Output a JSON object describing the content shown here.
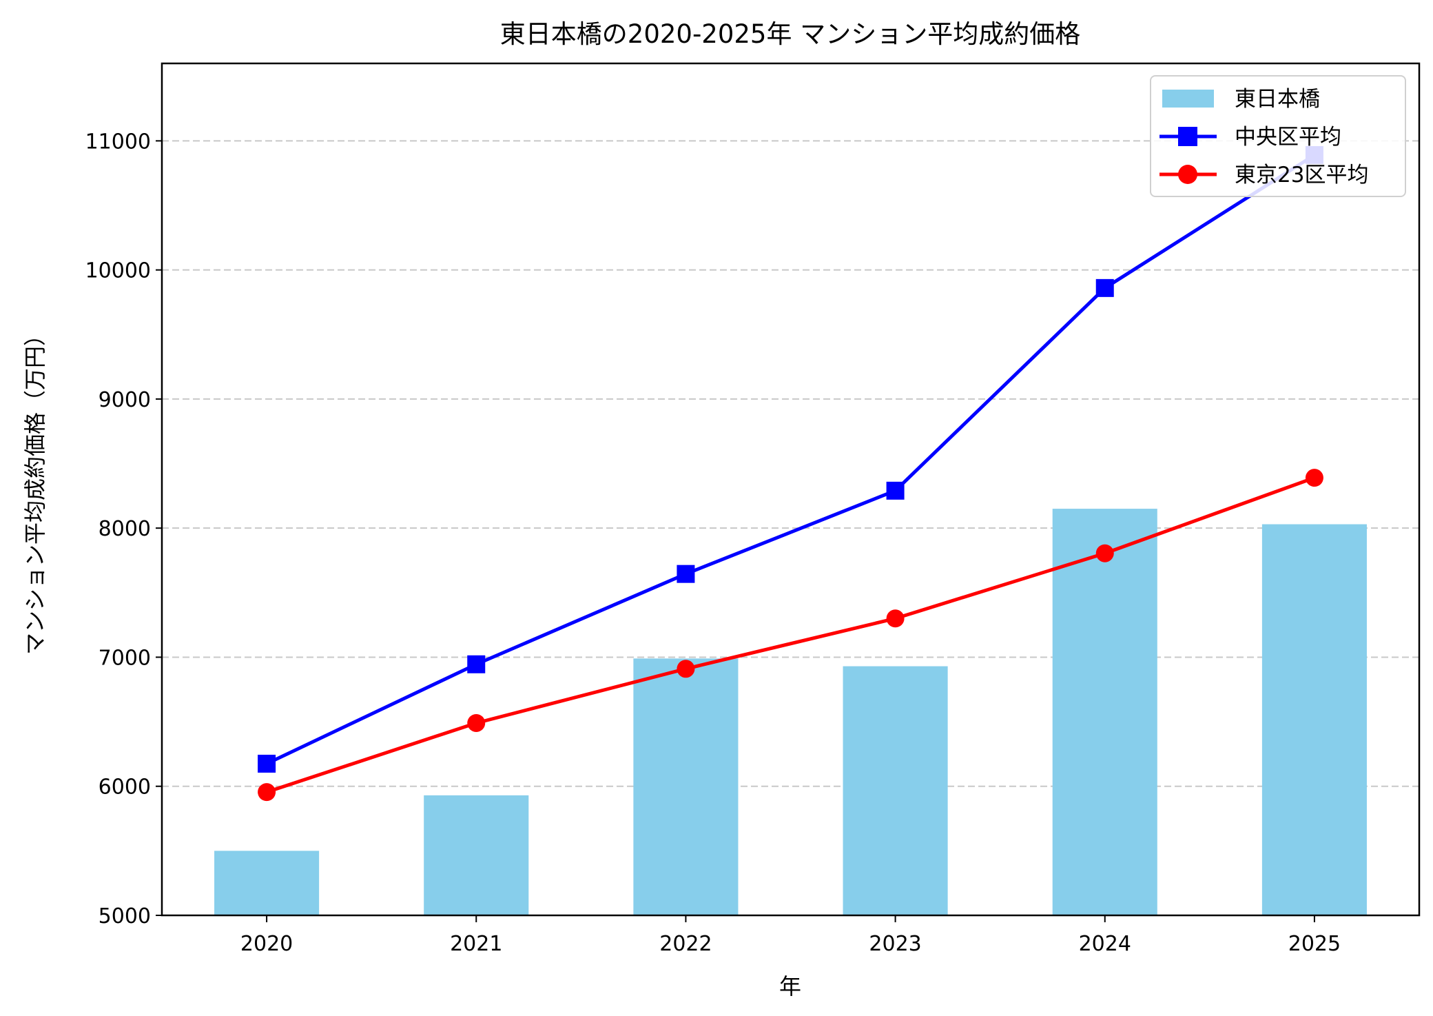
{
  "chart_data": {
    "type": "bar+line",
    "title": "東日本橋の2020-2025年 マンション平均成約価格",
    "xlabel": "年",
    "ylabel": "マンション平均成約価格（万円）",
    "categories": [
      "2020",
      "2021",
      "2022",
      "2023",
      "2024",
      "2025"
    ],
    "ylim": [
      5000,
      11600
    ],
    "yticks": [
      5000,
      6000,
      7000,
      8000,
      9000,
      10000,
      11000
    ],
    "grid": "y-dashed",
    "legend_position": "top-right",
    "series": [
      {
        "name": "東日本橋",
        "kind": "bar",
        "color": "#87ceeb",
        "values": [
          5500,
          5930,
          6990,
          6930,
          8150,
          8030
        ]
      },
      {
        "name": "中央区平均",
        "kind": "line",
        "marker": "square",
        "color": "#0000ff",
        "values": [
          6175,
          6945,
          7645,
          8290,
          9860,
          10890
        ]
      },
      {
        "name": "東京23区平均",
        "kind": "line",
        "marker": "circle",
        "color": "#ff0000",
        "values": [
          5955,
          6490,
          6910,
          7300,
          7805,
          8390
        ]
      }
    ]
  }
}
